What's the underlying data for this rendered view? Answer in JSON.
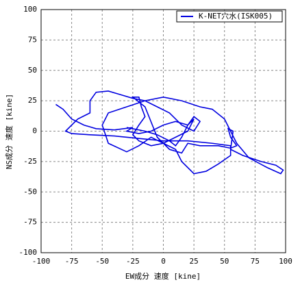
{
  "chart_data": {
    "type": "line",
    "xlabel": "EW成分 速度 [kine]",
    "ylabel": "NS成分 速度 [kine]",
    "xlim": [
      -100,
      100
    ],
    "ylim": [
      -100,
      100
    ],
    "xticks": [
      -100,
      -75,
      -50,
      -25,
      0,
      25,
      50,
      75,
      100
    ],
    "yticks": [
      -100,
      -75,
      -50,
      -25,
      0,
      25,
      50,
      75,
      100
    ],
    "grid": true,
    "legend": "upper right",
    "series": [
      {
        "name": "K-NET穴水(ISK005)",
        "color": "#0000e0",
        "x": [
          -85,
          -88,
          -82,
          -75,
          -65,
          -55,
          -40,
          -25,
          -30,
          -20,
          -10,
          0,
          10,
          20,
          25,
          20,
          10,
          0,
          -10,
          -20,
          -25,
          -20,
          -15,
          -18,
          -20,
          -25,
          -15,
          -5,
          5,
          15,
          20,
          30,
          45,
          55,
          60,
          55,
          53,
          57,
          55,
          65,
          80,
          92,
          98,
          96,
          85,
          70,
          60,
          50,
          40,
          30,
          15,
          0,
          -15,
          -30,
          -45,
          -50,
          -45,
          -30,
          -20,
          -10,
          0,
          10,
          15,
          25,
          35,
          45,
          55,
          55,
          40,
          20,
          0,
          -20,
          -40,
          -60,
          -75,
          -80,
          -70,
          -60,
          -60,
          -55,
          -45,
          -35,
          -25,
          -15,
          -5,
          5,
          15,
          25,
          30,
          25,
          20,
          15,
          10,
          5,
          -5,
          -15,
          -25,
          -30
        ],
        "y": [
          20,
          22,
          18,
          10,
          5,
          2,
          1,
          3,
          0,
          -2,
          0,
          5,
          8,
          5,
          10,
          0,
          -5,
          -10,
          -12,
          -8,
          -3,
          5,
          12,
          20,
          28,
          28,
          20,
          -5,
          -15,
          -18,
          -10,
          -12,
          -12,
          -14,
          -12,
          -5,
          2,
          0,
          -15,
          -20,
          -25,
          -28,
          -32,
          -35,
          -30,
          -22,
          -10,
          10,
          18,
          20,
          25,
          28,
          25,
          20,
          15,
          5,
          -10,
          -17,
          -12,
          -5,
          -10,
          -15,
          -25,
          -35,
          -33,
          -27,
          -20,
          -12,
          -10,
          -8,
          -8,
          -6,
          -4,
          -3,
          -2,
          0,
          10,
          15,
          25,
          32,
          33,
          30,
          27,
          25,
          20,
          15,
          5,
          0,
          8,
          12,
          5,
          -5,
          -12,
          -8,
          -3,
          0,
          2,
          3
        ]
      }
    ]
  }
}
